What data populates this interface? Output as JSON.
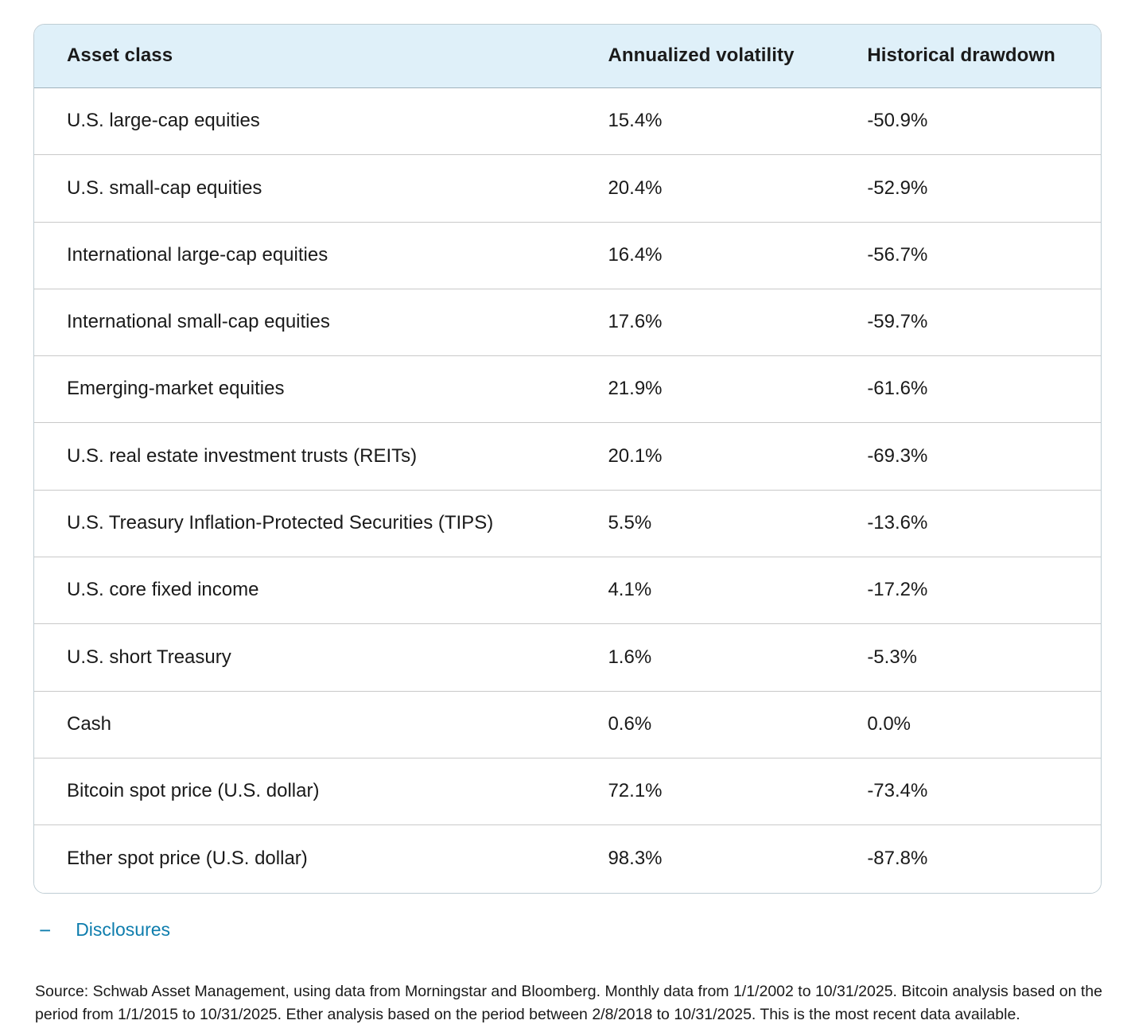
{
  "colors": {
    "header_bg": "#dff0f9",
    "outer_border": "#bfcdd4",
    "row_divider": "#c9c9c9",
    "header_divider": "#9fb2bc",
    "text": "#1a1a1a",
    "link_blue": "#0e7dad"
  },
  "table": {
    "headers": [
      "Asset class",
      "Annualized volatility",
      "Historical drawdown"
    ],
    "rows": [
      {
        "asset": "U.S. large-cap equities",
        "volatility": "15.4%",
        "drawdown": "-50.9%"
      },
      {
        "asset": "U.S. small-cap equities",
        "volatility": "20.4%",
        "drawdown": "-52.9%"
      },
      {
        "asset": "International large-cap equities",
        "volatility": "16.4%",
        "drawdown": "-56.7%"
      },
      {
        "asset": "International small-cap equities",
        "volatility": "17.6%",
        "drawdown": "-59.7%"
      },
      {
        "asset": "Emerging-market equities",
        "volatility": "21.9%",
        "drawdown": "-61.6%"
      },
      {
        "asset": "U.S. real estate investment trusts (REITs)",
        "volatility": "20.1%",
        "drawdown": "-69.3%"
      },
      {
        "asset": "U.S. Treasury Inflation-Protected Securities (TIPS)",
        "volatility": "5.5%",
        "drawdown": "-13.6%"
      },
      {
        "asset": "U.S. core fixed income",
        "volatility": "4.1%",
        "drawdown": "-17.2%"
      },
      {
        "asset": "U.S. short Treasury",
        "volatility": "1.6%",
        "drawdown": "-5.3%"
      },
      {
        "asset": "Cash",
        "volatility": "0.6%",
        "drawdown": "0.0%"
      },
      {
        "asset": "Bitcoin spot price (U.S. dollar)",
        "volatility": "72.1%",
        "drawdown": "-73.4%"
      },
      {
        "asset": "Ether spot price (U.S. dollar)",
        "volatility": "98.3%",
        "drawdown": "-87.8%"
      }
    ]
  },
  "disclosures": {
    "toggle_glyph": "−",
    "label": "Disclosures"
  },
  "source_text": "Source: Schwab Asset Management, using data from Morningstar and Bloomberg. Monthly data from 1/1/2002 to 10/31/2025. Bitcoin analysis based on the period from 1/1/2015 to 10/31/2025. Ether analysis based on the period between 2/8/2018 to 10/31/2025. This is the most recent data available.",
  "chart_data": {
    "type": "table",
    "title": "",
    "columns": [
      "Asset class",
      "Annualized volatility",
      "Historical drawdown"
    ],
    "categories": [
      "U.S. large-cap equities",
      "U.S. small-cap equities",
      "International large-cap equities",
      "International small-cap equities",
      "Emerging-market equities",
      "U.S. real estate investment trusts (REITs)",
      "U.S. Treasury Inflation-Protected Securities (TIPS)",
      "U.S. core fixed income",
      "U.S. short Treasury",
      "Cash",
      "Bitcoin spot price (U.S. dollar)",
      "Ether spot price (U.S. dollar)"
    ],
    "series": [
      {
        "name": "Annualized volatility (%)",
        "values": [
          15.4,
          20.4,
          16.4,
          17.6,
          21.9,
          20.1,
          5.5,
          4.1,
          1.6,
          0.6,
          72.1,
          98.3
        ]
      },
      {
        "name": "Historical drawdown (%)",
        "values": [
          -50.9,
          -52.9,
          -56.7,
          -59.7,
          -61.6,
          -69.3,
          -13.6,
          -17.2,
          -5.3,
          0.0,
          -73.4,
          -87.8
        ]
      }
    ]
  }
}
